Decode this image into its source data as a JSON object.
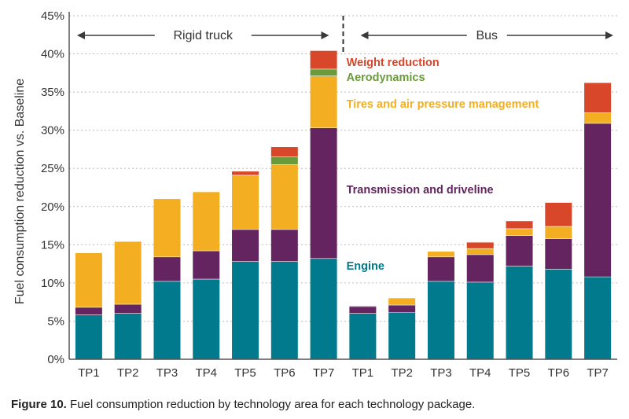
{
  "chart_data": {
    "type": "bar",
    "stacked": true,
    "ylabel": "Fuel consumption reduction vs. Baseline",
    "ylim": [
      0,
      45
    ],
    "yticks": [
      "0%",
      "5%",
      "10%",
      "15%",
      "20%",
      "25%",
      "30%",
      "35%",
      "40%",
      "45%"
    ],
    "grid": true,
    "groups": [
      {
        "label": "Rigid truck",
        "categories": [
          "TP1",
          "TP2",
          "TP3",
          "TP4",
          "TP5",
          "TP6",
          "TP7"
        ]
      },
      {
        "label": "Bus",
        "categories": [
          "TP1",
          "TP2",
          "TP3",
          "TP4",
          "TP5",
          "TP6",
          "TP7"
        ]
      }
    ],
    "categories": [
      "TP1",
      "TP2",
      "TP3",
      "TP4",
      "TP5",
      "TP6",
      "TP7",
      "TP1",
      "TP2",
      "TP3",
      "TP4",
      "TP5",
      "TP6",
      "TP7"
    ],
    "series": [
      {
        "name": "Engine",
        "color": "#007A8C",
        "values": [
          5.8,
          6.0,
          10.2,
          10.5,
          12.8,
          12.8,
          13.2,
          6.0,
          6.1,
          10.2,
          10.1,
          12.2,
          11.8,
          10.8
        ]
      },
      {
        "name": "Transmission and driveline",
        "color": "#63245F",
        "values": [
          1.0,
          1.2,
          3.2,
          3.7,
          4.2,
          4.2,
          17.1,
          0.9,
          1.0,
          3.2,
          3.6,
          4.0,
          4.0,
          20.1
        ]
      },
      {
        "name": "Tires and air pressure management",
        "color": "#F3AE22",
        "values": [
          7.1,
          8.2,
          7.6,
          7.7,
          7.1,
          8.5,
          6.8,
          0.1,
          0.9,
          0.7,
          0.8,
          0.9,
          1.6,
          1.4
        ]
      },
      {
        "name": "Aerodynamics",
        "color": "#6A9A3B",
        "values": [
          0,
          0,
          0,
          0,
          0,
          1.0,
          0.9,
          0,
          0,
          0,
          0,
          0,
          0,
          0
        ]
      },
      {
        "name": "Weight reduction",
        "color": "#D9472B",
        "values": [
          0,
          0,
          0,
          0,
          0.5,
          1.3,
          2.4,
          0,
          0,
          0,
          0.8,
          1.0,
          3.1,
          3.9
        ]
      }
    ],
    "annotations": [
      {
        "text": "Weight reduction",
        "series": "Weight reduction"
      },
      {
        "text": "Aerodynamics",
        "series": "Aerodynamics"
      },
      {
        "text": "Tires and air pressure management",
        "series": "Tires and air pressure management"
      },
      {
        "text": "Transmission and driveline",
        "series": "Transmission and driveline"
      },
      {
        "text": "Engine",
        "series": "Engine"
      }
    ]
  },
  "caption": {
    "prefix": "Figure 10.",
    "text": " Fuel consumption reduction by technology area for each technology package."
  }
}
